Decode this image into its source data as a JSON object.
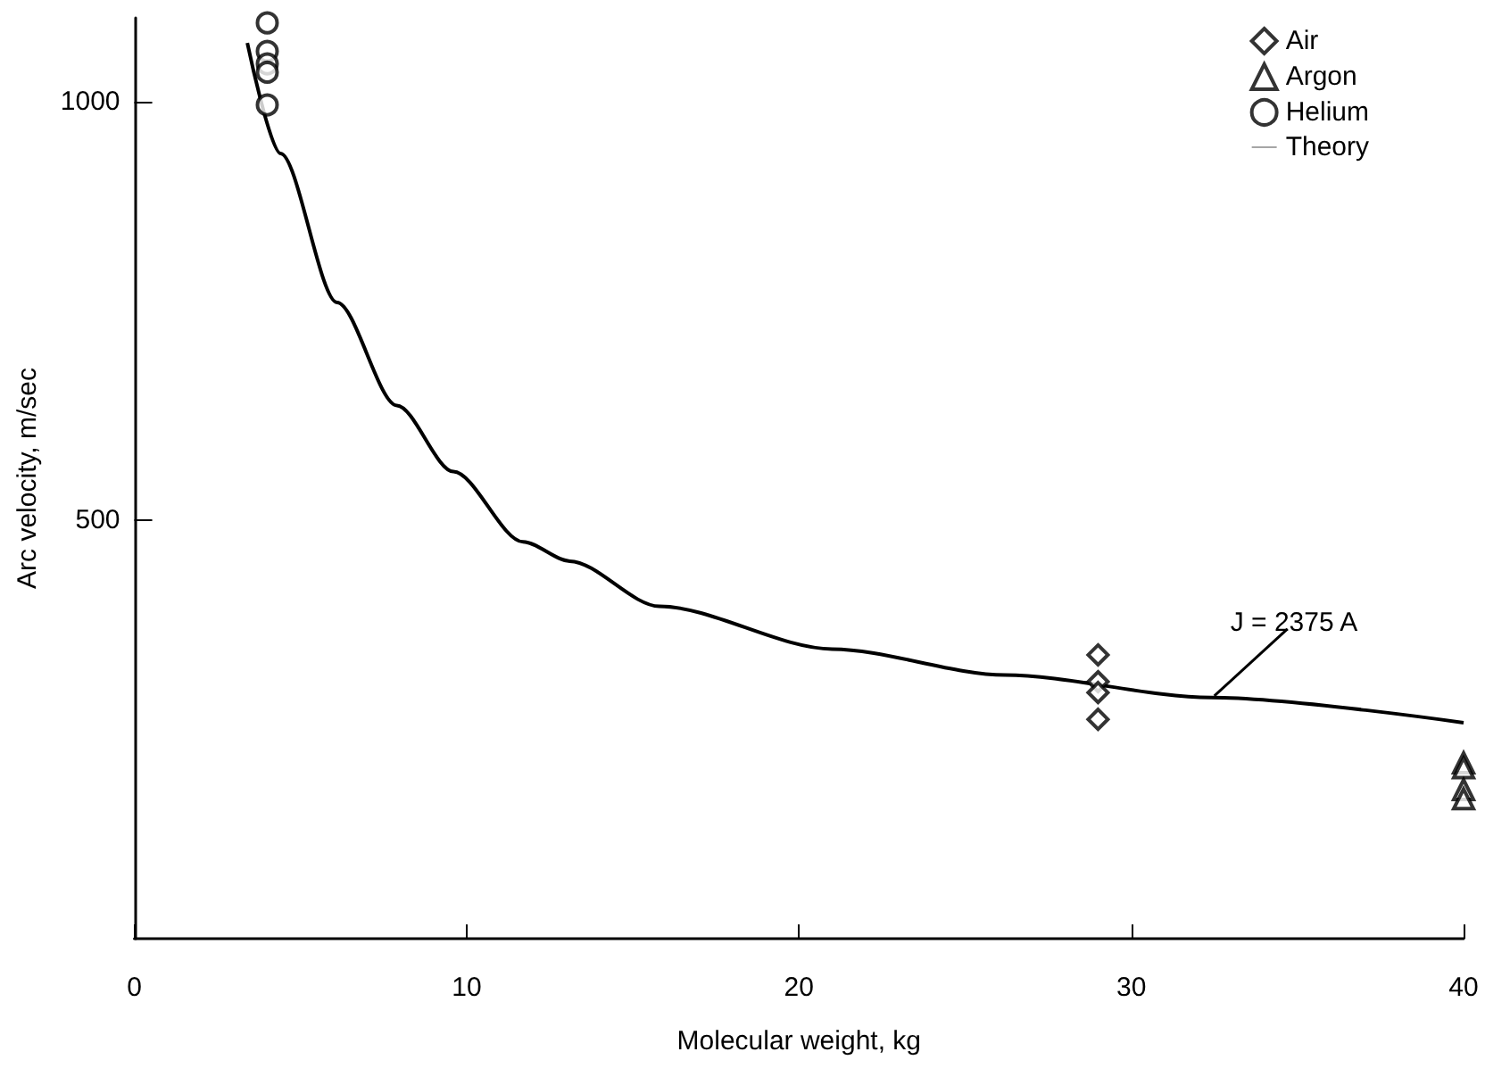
{
  "chart_data": {
    "type": "scatter",
    "xlabel": "Molecular weight, kg",
    "ylabel": "Arc velocity, m/sec",
    "xlim": [
      0,
      40
    ],
    "xticks": [
      0,
      10,
      20,
      30,
      40
    ],
    "ylim": [
      0,
      1100
    ],
    "yticks": [
      500,
      1000
    ],
    "grid": false,
    "legend": "top right",
    "series": [
      {
        "name": "Air",
        "color": "#000000",
        "marker": "diamond",
        "x": [
          29,
          29,
          29,
          29
        ],
        "values": [
          339,
          307,
          294,
          262
        ]
      },
      {
        "name": "Argon",
        "color": "#000000",
        "marker": "triangle",
        "x": [
          40,
          40,
          40,
          40
        ],
        "values": [
          210,
          204,
          178,
          167
        ]
      },
      {
        "name": "Helium",
        "color": "#000000",
        "marker": "circle",
        "x": [
          4,
          4,
          4,
          4,
          4
        ],
        "values": [
          1094,
          1060,
          1045,
          1035,
          996
        ]
      },
      {
        "name": "Theory",
        "type": "line",
        "color": "#000000",
        "marker": "none",
        "line_style": "solid",
        "x": [
          3.4,
          4.4,
          6.1,
          7.9,
          9.6,
          11.7,
          13.1,
          15.8,
          21,
          26.2,
          32.4,
          40
        ],
        "values": [
          1070,
          938,
          760,
          637,
          558,
          474,
          451,
          397,
          346,
          315,
          288,
          258
        ]
      }
    ],
    "annotations": [
      {
        "text": "J = 2375 A",
        "x": 32.5,
        "y": 290
      }
    ]
  }
}
